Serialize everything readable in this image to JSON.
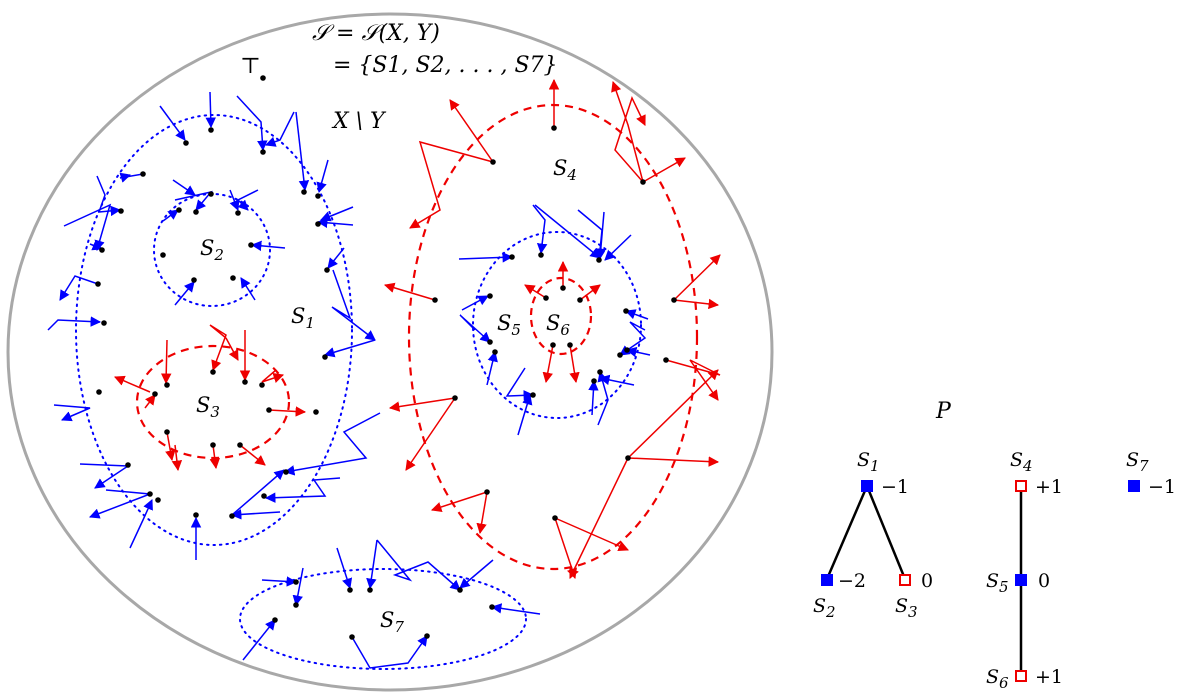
{
  "header": {
    "line1": "𝒮 = 𝒮(X, Y)",
    "line2": "= {S1, S2, . . . , S7}"
  },
  "labels": {
    "top": "⊤",
    "xminusy": "X \\ Y",
    "poset": "P"
  },
  "sets": [
    {
      "id": "S1",
      "sub": "1"
    },
    {
      "id": "S2",
      "sub": "2"
    },
    {
      "id": "S3",
      "sub": "3"
    },
    {
      "id": "S4",
      "sub": "4"
    },
    {
      "id": "S5",
      "sub": "5"
    },
    {
      "id": "S6",
      "sub": "6"
    },
    {
      "id": "S7",
      "sub": "7"
    }
  ],
  "poset_nodes": [
    {
      "id": "S1",
      "sub": "1",
      "value": "−1",
      "filled": true
    },
    {
      "id": "S2",
      "sub": "2",
      "value": "−2",
      "filled": true
    },
    {
      "id": "S3",
      "sub": "3",
      "value": "0",
      "filled": false
    },
    {
      "id": "S4",
      "sub": "4",
      "value": "+1",
      "filled": false
    },
    {
      "id": "S5",
      "sub": "5",
      "value": "0",
      "filled": true
    },
    {
      "id": "S6",
      "sub": "6",
      "value": "+1",
      "filled": false
    },
    {
      "id": "S7",
      "sub": "7",
      "value": "−1",
      "filled": true
    }
  ],
  "colors": {
    "blue": "#0000ff",
    "red": "#ee0000",
    "outline": "#a8a8a8"
  }
}
